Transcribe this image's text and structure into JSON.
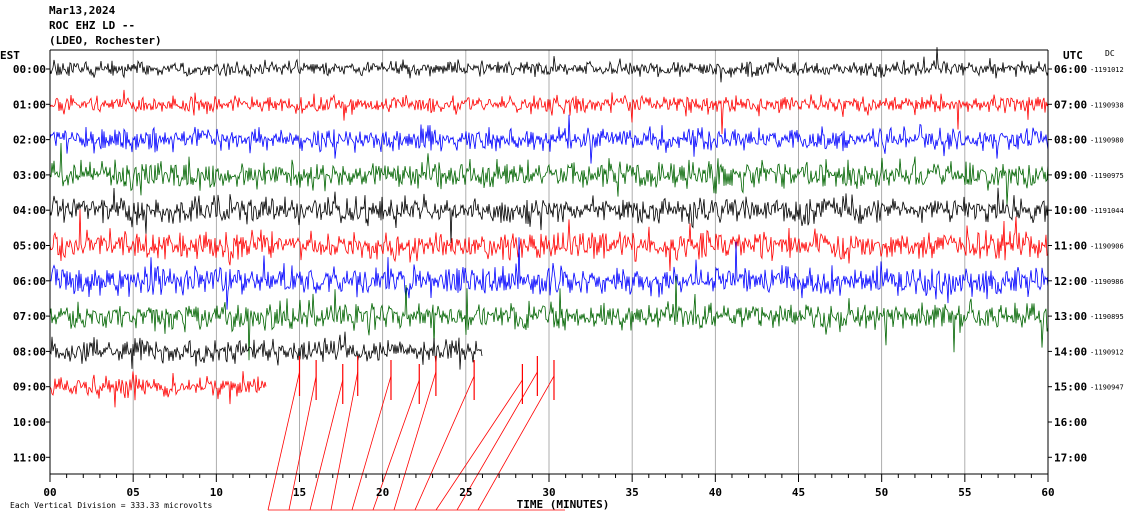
{
  "header": {
    "date": "Mar13,2024",
    "station": "ROC EHZ LD --",
    "network": "(LDEO, Rochester)"
  },
  "left_tz": "EST",
  "right_tz": "UTC",
  "dc_label": "DC",
  "footer": {
    "scale_note": "Each Vertical Division =  333.33 microvolts"
  },
  "chart_data": {
    "type": "line",
    "xlabel": "TIME (MINUTES)",
    "xlim": [
      0,
      60
    ],
    "x_ticks": [
      "00",
      "05",
      "10",
      "15",
      "20",
      "25",
      "30",
      "35",
      "40",
      "45",
      "50",
      "55",
      "60"
    ],
    "left_hours": [
      "00:00",
      "01:00",
      "02:00",
      "03:00",
      "04:00",
      "05:00",
      "06:00",
      "07:00",
      "08:00",
      "09:00",
      "10:00",
      "11:00"
    ],
    "right_hours": [
      "06:00",
      "07:00",
      "08:00",
      "09:00",
      "10:00",
      "11:00",
      "12:00",
      "13:00",
      "14:00",
      "15:00",
      "16:00",
      "17:00"
    ],
    "dc_offsets": [
      "1191012",
      "1190938",
      "1190980",
      "1190975",
      "1191044",
      "1190906",
      "1190986",
      "1190895",
      "1190912",
      "1190947"
    ],
    "trace_colors": [
      "#000000",
      "#ff0000",
      "#0000ff",
      "#006400"
    ],
    "traces": [
      {
        "hour": "00:00",
        "end_minute": 60,
        "color": "#000000"
      },
      {
        "hour": "01:00",
        "end_minute": 60,
        "color": "#ff0000"
      },
      {
        "hour": "02:00",
        "end_minute": 60,
        "color": "#0000ff"
      },
      {
        "hour": "03:00",
        "end_minute": 60,
        "color": "#006400"
      },
      {
        "hour": "04:00",
        "end_minute": 60,
        "color": "#000000"
      },
      {
        "hour": "05:00",
        "end_minute": 60,
        "color": "#ff0000"
      },
      {
        "hour": "06:00",
        "end_minute": 60,
        "color": "#0000ff"
      },
      {
        "hour": "07:00",
        "end_minute": 60,
        "color": "#006400"
      },
      {
        "hour": "08:00",
        "end_minute": 26,
        "color": "#000000"
      },
      {
        "hour": "09:00",
        "end_minute": 13,
        "color": "#ff0000"
      }
    ],
    "grid": "vertical-minutes"
  }
}
